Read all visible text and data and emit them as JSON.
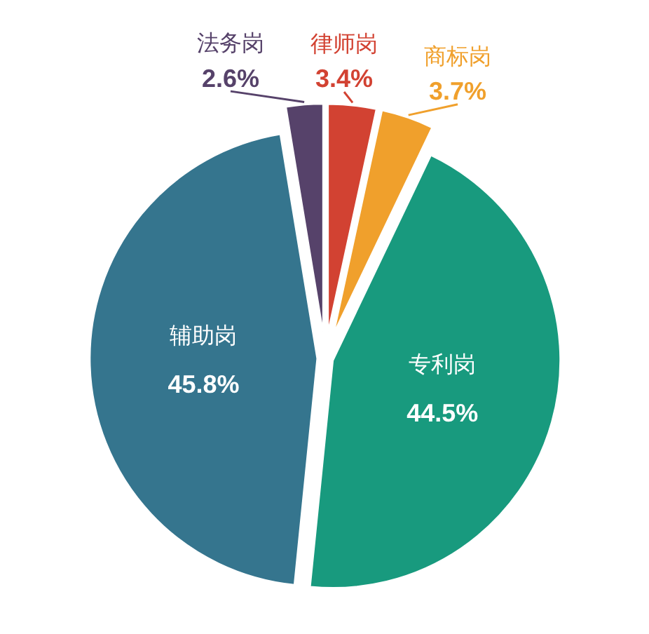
{
  "chart_data": {
    "type": "pie",
    "categories": [
      "律师岗",
      "商标岗",
      "专利岗",
      "辅助岗",
      "法务岗"
    ],
    "values": [
      3.4,
      3.7,
      44.5,
      45.8,
      2.6
    ],
    "value_labels": [
      "3.4%",
      "3.7%",
      "44.5%",
      "45.8%",
      "2.6%"
    ],
    "colors": [
      "#d24232",
      "#f0a02c",
      "#189a7e",
      "#35758e",
      "#56426a"
    ],
    "legend": false
  }
}
